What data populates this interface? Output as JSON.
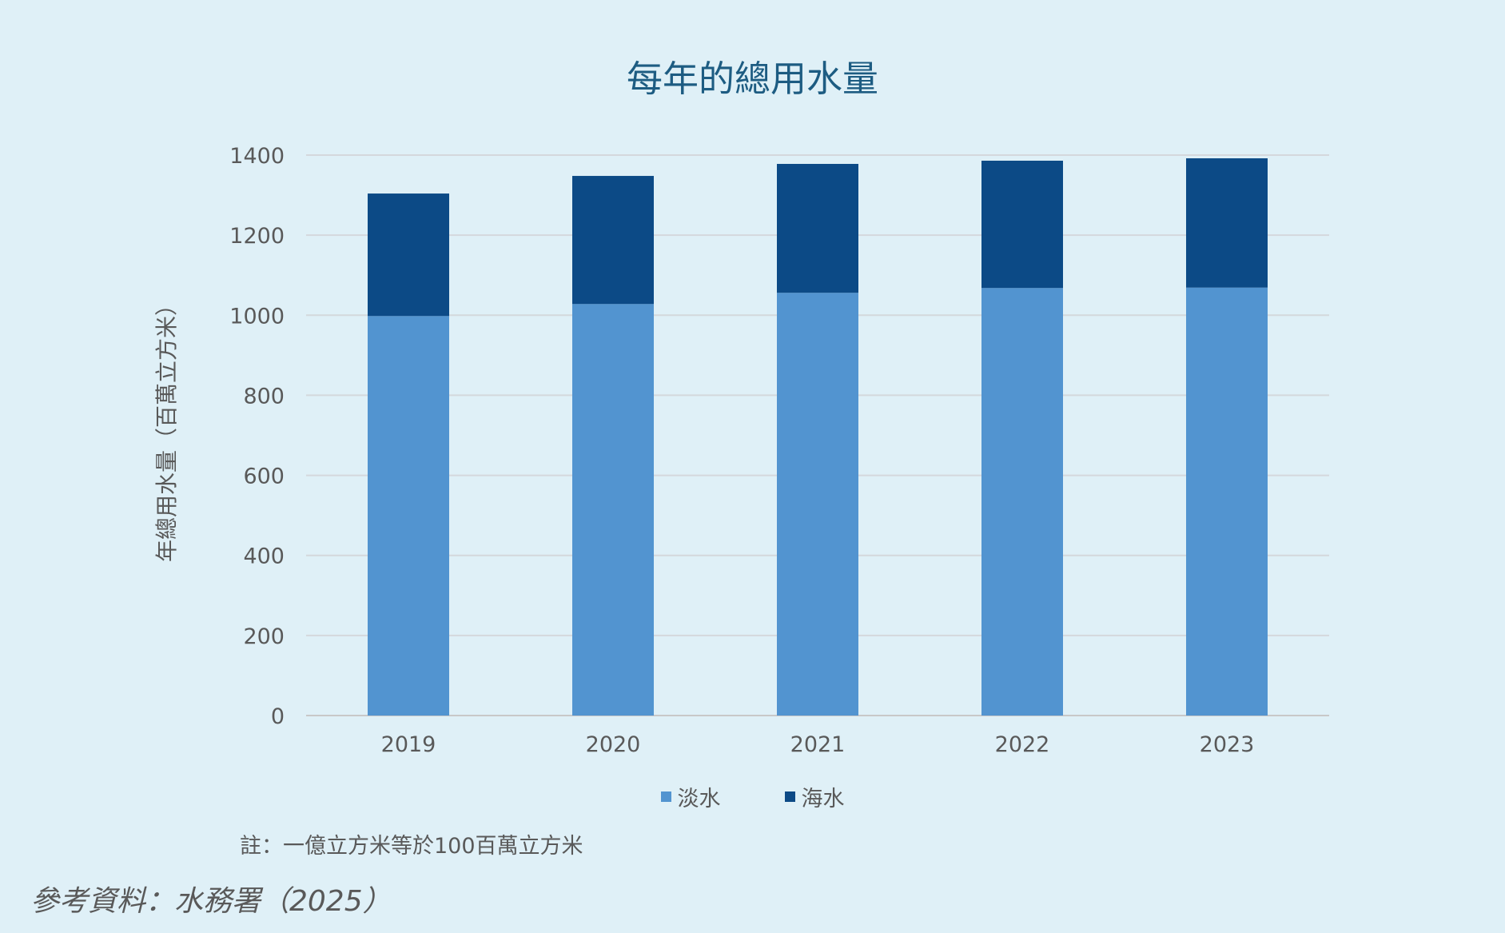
{
  "chart_data": {
    "type": "bar",
    "stacked": true,
    "title": "每年的總用水量",
    "ylabel": "年總用水量（百萬立方米）",
    "xlabel": "",
    "categories": [
      "2019",
      "2020",
      "2021",
      "2022",
      "2023"
    ],
    "series": [
      {
        "name": "淡水",
        "color": "#5294d0",
        "values": [
          998,
          1028,
          1056,
          1068,
          1069
        ]
      },
      {
        "name": "海水",
        "color": "#0c4a86",
        "values": [
          306,
          320,
          322,
          318,
          323
        ]
      }
    ],
    "ylim": [
      0,
      1400
    ],
    "yticks": [
      "0",
      "200",
      "400",
      "600",
      "800",
      "1000",
      "1200",
      "1400"
    ],
    "grid": true,
    "legend_position": "bottom"
  },
  "note": "註：一億立方米等於100百萬立方米",
  "source": "參考資料：水務署（2025）"
}
